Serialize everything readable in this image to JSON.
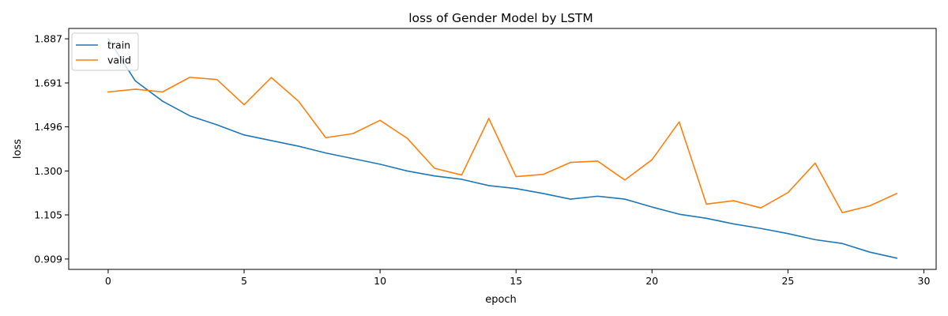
{
  "chart_data": {
    "type": "line",
    "title": "loss of Gender Model by LSTM",
    "xlabel": "epoch",
    "ylabel": "loss",
    "x": [
      0,
      1,
      2,
      3,
      4,
      5,
      6,
      7,
      8,
      9,
      10,
      11,
      12,
      13,
      14,
      15,
      16,
      17,
      18,
      19,
      20,
      21,
      22,
      23,
      24,
      25,
      26,
      27,
      28,
      29
    ],
    "xlim": [
      -1.45,
      30.45
    ],
    "ylim": [
      0.863,
      1.933
    ],
    "xticks": [
      0,
      5,
      10,
      15,
      20,
      25,
      30
    ],
    "xtick_labels": [
      "0",
      "5",
      "10",
      "15",
      "20",
      "25",
      "30"
    ],
    "yticks": [
      0.909,
      1.105,
      1.3,
      1.496,
      1.691,
      1.887
    ],
    "ytick_labels": [
      "0.909",
      "1.105",
      "1.300",
      "1.496",
      "1.691",
      "1.887"
    ],
    "grid": false,
    "legend_position": "top-left",
    "series": [
      {
        "name": "train",
        "color": "#1f77b4",
        "values": [
          1.887,
          1.7,
          1.61,
          1.545,
          1.505,
          1.46,
          1.435,
          1.41,
          1.38,
          1.355,
          1.33,
          1.3,
          1.278,
          1.263,
          1.235,
          1.222,
          1.2,
          1.175,
          1.188,
          1.175,
          1.14,
          1.108,
          1.09,
          1.065,
          1.045,
          1.022,
          0.995,
          0.978,
          0.94,
          0.913
        ]
      },
      {
        "name": "valid",
        "color": "#ff7f0e",
        "values": [
          1.651,
          1.663,
          1.651,
          1.716,
          1.706,
          1.594,
          1.715,
          1.61,
          1.448,
          1.466,
          1.525,
          1.445,
          1.312,
          1.282,
          1.533,
          1.275,
          1.285,
          1.338,
          1.344,
          1.26,
          1.35,
          1.518,
          1.153,
          1.168,
          1.136,
          1.204,
          1.335,
          1.115,
          1.145,
          1.2
        ]
      }
    ]
  }
}
